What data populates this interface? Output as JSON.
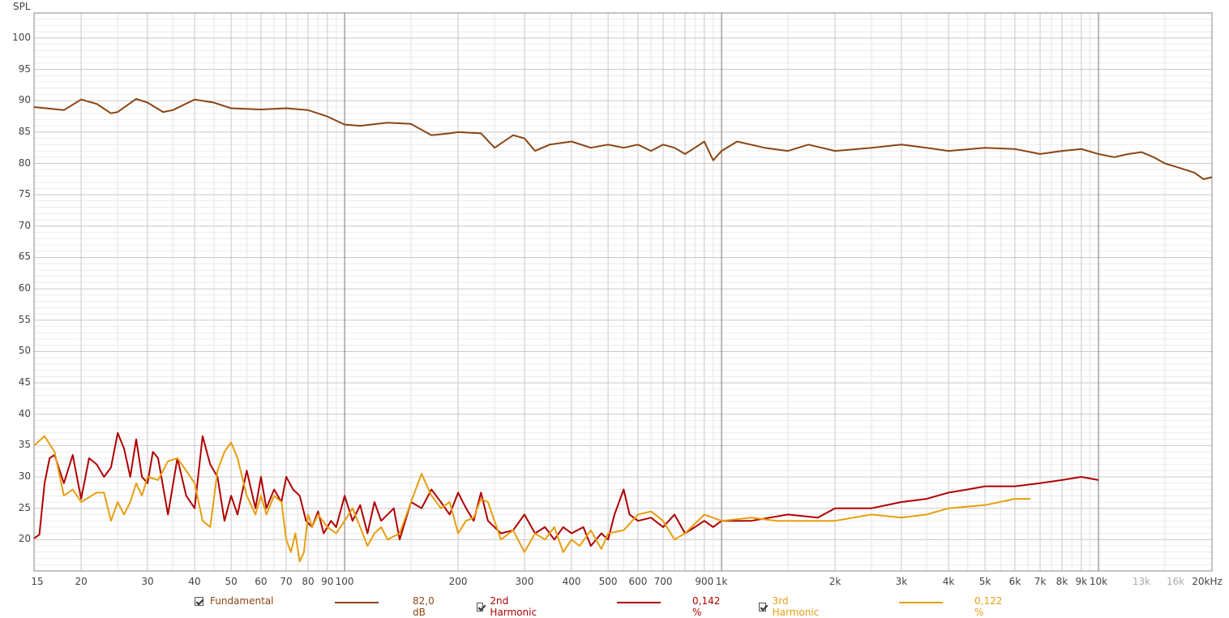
{
  "chart_data": {
    "type": "line",
    "title": "",
    "ylabel": "SPL",
    "xlabel": "",
    "xscale": "log",
    "xlim": [
      15,
      20000
    ],
    "ylim": [
      15,
      104
    ],
    "grid": true,
    "y_ticks": [
      20,
      25,
      30,
      35,
      40,
      45,
      50,
      55,
      60,
      65,
      70,
      75,
      80,
      85,
      90,
      95,
      100
    ],
    "x_ticks": [
      {
        "v": 15,
        "label": "15"
      },
      {
        "v": 20,
        "label": "20"
      },
      {
        "v": 30,
        "label": "30"
      },
      {
        "v": 40,
        "label": "40"
      },
      {
        "v": 50,
        "label": "50"
      },
      {
        "v": 60,
        "label": "60"
      },
      {
        "v": 70,
        "label": "70"
      },
      {
        "v": 80,
        "label": "80"
      },
      {
        "v": 90,
        "label": "90"
      },
      {
        "v": 100,
        "label": "100"
      },
      {
        "v": 200,
        "label": "200"
      },
      {
        "v": 300,
        "label": "300"
      },
      {
        "v": 400,
        "label": "400"
      },
      {
        "v": 500,
        "label": "500"
      },
      {
        "v": 600,
        "label": "600"
      },
      {
        "v": 700,
        "label": "700"
      },
      {
        "v": 900,
        "label": "900"
      },
      {
        "v": 1000,
        "label": "1k"
      },
      {
        "v": 2000,
        "label": "2k"
      },
      {
        "v": 3000,
        "label": "3k"
      },
      {
        "v": 4000,
        "label": "4k"
      },
      {
        "v": 5000,
        "label": "5k"
      },
      {
        "v": 6000,
        "label": "6k"
      },
      {
        "v": 7000,
        "label": "7k"
      },
      {
        "v": 8000,
        "label": "8k"
      },
      {
        "v": 9000,
        "label": "9k"
      },
      {
        "v": 10000,
        "label": "10k"
      },
      {
        "v": 13000,
        "label": "13k"
      },
      {
        "v": 16000,
        "label": "16k"
      },
      {
        "v": 20000,
        "label": "20kHz"
      }
    ],
    "series": [
      {
        "name": "Fundamental",
        "color": "#8b4513",
        "legend_value": "82,0 dB",
        "points": [
          [
            15,
            89
          ],
          [
            18,
            88.5
          ],
          [
            20,
            90.2
          ],
          [
            22,
            89.5
          ],
          [
            24,
            88
          ],
          [
            25,
            88.2
          ],
          [
            28,
            90.3
          ],
          [
            30,
            89.7
          ],
          [
            33,
            88.2
          ],
          [
            35,
            88.5
          ],
          [
            40,
            90.2
          ],
          [
            45,
            89.7
          ],
          [
            50,
            88.8
          ],
          [
            60,
            88.6
          ],
          [
            70,
            88.8
          ],
          [
            80,
            88.5
          ],
          [
            90,
            87.5
          ],
          [
            100,
            86.2
          ],
          [
            110,
            86
          ],
          [
            130,
            86.5
          ],
          [
            150,
            86.3
          ],
          [
            170,
            84.5
          ],
          [
            190,
            84.8
          ],
          [
            200,
            85
          ],
          [
            230,
            84.8
          ],
          [
            250,
            82.5
          ],
          [
            280,
            84.5
          ],
          [
            300,
            84
          ],
          [
            320,
            82
          ],
          [
            350,
            83
          ],
          [
            400,
            83.5
          ],
          [
            450,
            82.5
          ],
          [
            500,
            83
          ],
          [
            550,
            82.5
          ],
          [
            600,
            83
          ],
          [
            650,
            82
          ],
          [
            700,
            83
          ],
          [
            750,
            82.5
          ],
          [
            800,
            81.5
          ],
          [
            850,
            82.5
          ],
          [
            900,
            83.5
          ],
          [
            950,
            80.5
          ],
          [
            1000,
            82
          ],
          [
            1100,
            83.5
          ],
          [
            1300,
            82.5
          ],
          [
            1500,
            82
          ],
          [
            1700,
            83
          ],
          [
            2000,
            82
          ],
          [
            2500,
            82.5
          ],
          [
            3000,
            83
          ],
          [
            3500,
            82.5
          ],
          [
            4000,
            82
          ],
          [
            5000,
            82.5
          ],
          [
            6000,
            82.3
          ],
          [
            7000,
            81.5
          ],
          [
            8000,
            82
          ],
          [
            9000,
            82.3
          ],
          [
            10000,
            81.5
          ],
          [
            11000,
            81
          ],
          [
            12000,
            81.5
          ],
          [
            13000,
            81.8
          ],
          [
            14000,
            81
          ],
          [
            15000,
            80
          ],
          [
            16000,
            79.5
          ],
          [
            17000,
            79
          ],
          [
            18000,
            78.5
          ],
          [
            19000,
            77.5
          ],
          [
            20000,
            77.8
          ]
        ]
      },
      {
        "name": "2nd Harmonic",
        "color": "#b00000",
        "legend_value": "0,142 %",
        "points": [
          [
            15,
            20.2
          ],
          [
            15.5,
            20.8
          ],
          [
            16,
            29
          ],
          [
            16.5,
            33
          ],
          [
            17,
            33.5
          ],
          [
            18,
            29
          ],
          [
            19,
            33.5
          ],
          [
            20,
            26.5
          ],
          [
            21,
            33
          ],
          [
            22,
            32
          ],
          [
            23,
            30
          ],
          [
            24,
            31.5
          ],
          [
            25,
            37
          ],
          [
            26,
            34.5
          ],
          [
            27,
            30
          ],
          [
            28,
            36
          ],
          [
            29,
            30
          ],
          [
            30,
            29
          ],
          [
            31,
            34
          ],
          [
            32,
            33
          ],
          [
            34,
            24
          ],
          [
            36,
            33
          ],
          [
            38,
            27
          ],
          [
            40,
            25
          ],
          [
            42,
            36.5
          ],
          [
            44,
            32
          ],
          [
            46,
            30
          ],
          [
            48,
            23
          ],
          [
            50,
            27
          ],
          [
            52,
            24
          ],
          [
            55,
            31
          ],
          [
            58,
            25
          ],
          [
            60,
            30
          ],
          [
            62,
            25
          ],
          [
            65,
            28
          ],
          [
            68,
            26
          ],
          [
            70,
            30
          ],
          [
            73,
            28
          ],
          [
            76,
            27
          ],
          [
            79,
            23
          ],
          [
            82,
            22
          ],
          [
            85,
            24.5
          ],
          [
            88,
            21
          ],
          [
            92,
            23
          ],
          [
            95,
            22
          ],
          [
            100,
            27
          ],
          [
            105,
            23
          ],
          [
            110,
            25.5
          ],
          [
            115,
            21
          ],
          [
            120,
            26
          ],
          [
            125,
            23
          ],
          [
            130,
            24
          ],
          [
            135,
            25
          ],
          [
            140,
            20
          ],
          [
            150,
            26
          ],
          [
            160,
            25
          ],
          [
            170,
            28
          ],
          [
            180,
            26
          ],
          [
            190,
            24
          ],
          [
            200,
            27.5
          ],
          [
            210,
            25
          ],
          [
            220,
            23
          ],
          [
            230,
            27.5
          ],
          [
            240,
            23
          ],
          [
            260,
            21
          ],
          [
            280,
            21.5
          ],
          [
            300,
            24
          ],
          [
            320,
            21
          ],
          [
            340,
            22
          ],
          [
            360,
            20
          ],
          [
            380,
            22
          ],
          [
            400,
            21
          ],
          [
            430,
            22
          ],
          [
            450,
            19
          ],
          [
            480,
            21
          ],
          [
            500,
            20
          ],
          [
            520,
            24
          ],
          [
            550,
            28
          ],
          [
            570,
            24
          ],
          [
            600,
            23
          ],
          [
            650,
            23.5
          ],
          [
            700,
            22
          ],
          [
            750,
            24
          ],
          [
            800,
            21
          ],
          [
            850,
            22
          ],
          [
            900,
            23
          ],
          [
            950,
            22
          ],
          [
            1000,
            23
          ],
          [
            1200,
            23
          ],
          [
            1500,
            24
          ],
          [
            1800,
            23.5
          ],
          [
            2000,
            25
          ],
          [
            2500,
            25
          ],
          [
            3000,
            26
          ],
          [
            3500,
            26.5
          ],
          [
            4000,
            27.5
          ],
          [
            4500,
            28
          ],
          [
            5000,
            28.5
          ],
          [
            6000,
            28.5
          ],
          [
            7000,
            29
          ],
          [
            8000,
            29.5
          ],
          [
            9000,
            30
          ],
          [
            10000,
            29.5
          ]
        ]
      },
      {
        "name": "3rd Harmonic",
        "color": "#e89e10",
        "legend_value": "0,122 %",
        "points": [
          [
            15,
            35
          ],
          [
            16,
            36.5
          ],
          [
            17,
            34
          ],
          [
            18,
            27
          ],
          [
            19,
            28
          ],
          [
            20,
            26
          ],
          [
            22,
            27.5
          ],
          [
            23,
            27.5
          ],
          [
            24,
            23
          ],
          [
            25,
            26
          ],
          [
            26,
            24
          ],
          [
            27,
            26
          ],
          [
            28,
            29
          ],
          [
            29,
            27
          ],
          [
            30,
            30
          ],
          [
            32,
            29.5
          ],
          [
            34,
            32.5
          ],
          [
            36,
            33
          ],
          [
            38,
            31
          ],
          [
            40,
            29
          ],
          [
            42,
            23
          ],
          [
            44,
            22
          ],
          [
            46,
            31
          ],
          [
            48,
            34
          ],
          [
            50,
            35.5
          ],
          [
            52,
            33
          ],
          [
            55,
            27
          ],
          [
            58,
            24
          ],
          [
            60,
            27
          ],
          [
            62,
            24
          ],
          [
            65,
            27
          ],
          [
            68,
            26
          ],
          [
            70,
            20
          ],
          [
            72,
            18
          ],
          [
            74,
            21
          ],
          [
            76,
            16.5
          ],
          [
            78,
            18
          ],
          [
            80,
            24
          ],
          [
            82,
            22
          ],
          [
            85,
            24
          ],
          [
            90,
            22
          ],
          [
            95,
            21
          ],
          [
            100,
            23
          ],
          [
            105,
            25
          ],
          [
            110,
            22
          ],
          [
            115,
            19
          ],
          [
            120,
            21
          ],
          [
            125,
            22
          ],
          [
            130,
            20
          ],
          [
            140,
            21
          ],
          [
            150,
            26
          ],
          [
            160,
            30.5
          ],
          [
            170,
            27
          ],
          [
            180,
            25
          ],
          [
            190,
            26
          ],
          [
            200,
            21
          ],
          [
            210,
            23
          ],
          [
            220,
            23.5
          ],
          [
            230,
            26.5
          ],
          [
            240,
            26
          ],
          [
            260,
            20
          ],
          [
            280,
            21.5
          ],
          [
            300,
            18
          ],
          [
            320,
            21
          ],
          [
            340,
            20
          ],
          [
            360,
            22
          ],
          [
            380,
            18
          ],
          [
            400,
            20
          ],
          [
            420,
            19
          ],
          [
            450,
            21.5
          ],
          [
            480,
            18.5
          ],
          [
            500,
            21
          ],
          [
            550,
            21.5
          ],
          [
            600,
            24
          ],
          [
            650,
            24.5
          ],
          [
            700,
            23
          ],
          [
            750,
            20
          ],
          [
            800,
            21
          ],
          [
            900,
            24
          ],
          [
            1000,
            23
          ],
          [
            1200,
            23.5
          ],
          [
            1400,
            23
          ],
          [
            1600,
            23
          ],
          [
            1800,
            23
          ],
          [
            2000,
            23
          ],
          [
            2500,
            24
          ],
          [
            3000,
            23.5
          ],
          [
            3500,
            24
          ],
          [
            4000,
            25
          ],
          [
            5000,
            25.5
          ],
          [
            6000,
            26.5
          ],
          [
            6600,
            26.5
          ]
        ]
      }
    ]
  },
  "legend": [
    {
      "label": "Fundamental",
      "color": "#8b4513",
      "value": "82,0 dB"
    },
    {
      "label": "2nd Harmonic",
      "color": "#b00000",
      "value": "0,142 %"
    },
    {
      "label": "3rd Harmonic",
      "color": "#e89e10",
      "value": "0,122 %"
    }
  ]
}
